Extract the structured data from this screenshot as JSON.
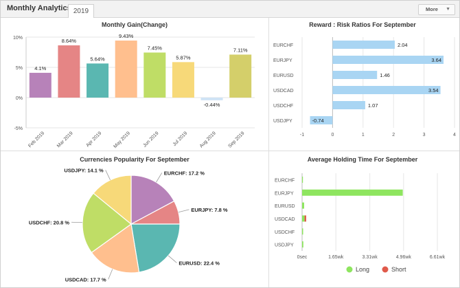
{
  "header": {
    "title": "Monthly Analytics",
    "tab": "2019",
    "more_label": "More",
    "more_icon": "chevron-down-icon"
  },
  "colors": {
    "border": "#cfcfcf",
    "bar_blue": "#a9d5f3",
    "long": "#8ee55f",
    "short": "#e05a4b"
  },
  "chart_data": [
    {
      "type": "bar",
      "title": "Monthly Gain(Change)",
      "categories": [
        "Feb 2019",
        "Mar 2019",
        "Apr 2019",
        "May 2019",
        "Jun 2019",
        "Jul 2019",
        "Aug 2019",
        "Sep 2019"
      ],
      "values": [
        4.1,
        8.64,
        5.64,
        9.43,
        7.45,
        5.87,
        -0.44,
        7.11
      ],
      "value_labels": [
        "4.1%",
        "8.64%",
        "5.64%",
        "9.43%",
        "7.45%",
        "5.87%",
        "-0.44%",
        "7.11%"
      ],
      "colors": [
        "#b782b9",
        "#e58585",
        "#5ab7b1",
        "#ffbf8e",
        "#bfdd66",
        "#f7d979",
        "#cfe3f5",
        "#d4cf6a"
      ],
      "ylim": [
        -5,
        10
      ],
      "yticks": [
        -5,
        0,
        5,
        10
      ],
      "ytick_labels": [
        "-5%",
        "0%",
        "5%",
        "10%"
      ],
      "grid": true
    },
    {
      "type": "bar",
      "title": "Reward : Risk Ratios For September",
      "categories": [
        "EURCHF",
        "EURJPY",
        "EURUSD",
        "USDCAD",
        "USDCHF",
        "USDJPY"
      ],
      "values": [
        2.04,
        3.64,
        1.46,
        3.54,
        1.07,
        -0.74
      ],
      "value_labels": [
        "2.04",
        "3.64",
        "1.46",
        "3.54",
        "1.07",
        "-0.74"
      ],
      "xlim": [
        -1,
        4
      ],
      "xticks": [
        -1,
        0,
        1,
        2,
        3,
        4
      ],
      "xtick_labels": [
        "-1",
        "0",
        "1",
        "2",
        "3",
        "4"
      ],
      "grid": true
    },
    {
      "type": "pie",
      "title": "Currencies Popularity For September",
      "slices": [
        {
          "label": "EURCHF: 17.2 %",
          "value": 17.2,
          "color": "#b782b9"
        },
        {
          "label": "EURJPY: 7.8 %",
          "value": 7.8,
          "color": "#e58585"
        },
        {
          "label": "EURUSD: 22.4 %",
          "value": 22.4,
          "color": "#5ab7b1"
        },
        {
          "label": "USDCAD: 17.7 %",
          "value": 17.7,
          "color": "#ffbf8e"
        },
        {
          "label": "USDCHF: 20.8 %",
          "value": 20.8,
          "color": "#bfdd66"
        },
        {
          "label": "USDJPY: 14.1 %",
          "value": 14.1,
          "color": "#f7d979"
        }
      ]
    },
    {
      "type": "bar",
      "title": "Average Holding Time For September",
      "categories": [
        "EURCHF",
        "EURJPY",
        "EURUSD",
        "USDCAD",
        "USDCHF",
        "USDJPY"
      ],
      "series": [
        {
          "name": "Long",
          "values": [
            0.04,
            4.92,
            0.1,
            0.12,
            0.05,
            0.06
          ]
        },
        {
          "name": "Short",
          "values": [
            0,
            0,
            0,
            0.08,
            0,
            0
          ]
        }
      ],
      "unit": "wk",
      "xlim": [
        0,
        6.61
      ],
      "xticks": [
        0,
        1.65,
        3.31,
        4.96,
        6.61
      ],
      "xtick_labels": [
        "0sec",
        "1.65wk",
        "3.31wk",
        "4.96wk",
        "6.61wk"
      ],
      "legend": "bottom",
      "grid": true
    }
  ]
}
